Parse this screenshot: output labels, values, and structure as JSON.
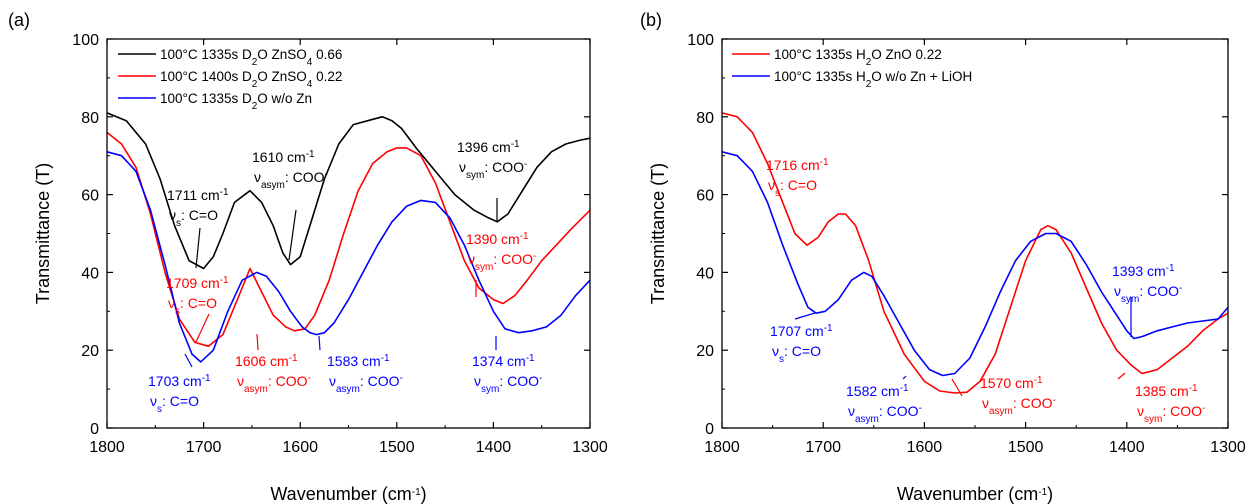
{
  "chart_data": [
    {
      "type": "line",
      "panel_label": "(a)",
      "xlabel": "Wavenumber (cm",
      "xlabel_sup": "-1",
      "xlabel_tail": ")",
      "ylabel": "Transmittance (T)",
      "xlim": [
        1800,
        1300
      ],
      "ylim": [
        0,
        100
      ],
      "x_reversed": true,
      "xticks": [
        1800,
        1700,
        1600,
        1500,
        1400,
        1300
      ],
      "yticks": [
        0,
        20,
        40,
        60,
        80,
        100
      ],
      "grid": false,
      "legend_position": "top-left",
      "series": [
        {
          "name": "100°C 1335s D2O ZnSO4 0.66",
          "legend_parts": [
            [
              "100°C 1335s D",
              ""
            ],
            [
              "2",
              "sub"
            ],
            [
              "O ZnSO",
              ""
            ],
            [
              "4",
              "sub"
            ],
            [
              " 0.66",
              ""
            ]
          ],
          "color": "#000000",
          "x": [
            1800,
            1780,
            1760,
            1745,
            1730,
            1715,
            1700,
            1690,
            1680,
            1668,
            1652,
            1640,
            1628,
            1618,
            1610,
            1600,
            1590,
            1575,
            1560,
            1545,
            1530,
            1515,
            1505,
            1495,
            1480,
            1460,
            1440,
            1420,
            1405,
            1396,
            1385,
            1370,
            1355,
            1340,
            1325,
            1310,
            1300
          ],
          "y": [
            81,
            79,
            73,
            64,
            52,
            43,
            41,
            44,
            50,
            58,
            61,
            58,
            52,
            45,
            42,
            44,
            52,
            64,
            73,
            78,
            79,
            80,
            79,
            77,
            72,
            66,
            60,
            56,
            54,
            53,
            55,
            61,
            67,
            71,
            73,
            74,
            74.5
          ]
        },
        {
          "name": "100°C 1400s D2O ZnSO4 0.22",
          "legend_parts": [
            [
              "100°C 1400s D",
              ""
            ],
            [
              "2",
              "sub"
            ],
            [
              "O ZnSO",
              ""
            ],
            [
              "4",
              "sub"
            ],
            [
              " 0.22",
              ""
            ]
          ],
          "color": "#ff0000",
          "x": [
            1800,
            1785,
            1770,
            1755,
            1740,
            1725,
            1709,
            1695,
            1680,
            1665,
            1652,
            1640,
            1628,
            1615,
            1606,
            1595,
            1585,
            1570,
            1555,
            1540,
            1525,
            1510,
            1500,
            1490,
            1475,
            1460,
            1445,
            1430,
            1415,
            1400,
            1390,
            1378,
            1365,
            1350,
            1335,
            1320,
            1300
          ],
          "y": [
            76,
            73,
            67,
            55,
            40,
            28,
            22,
            21,
            24,
            33,
            41,
            35,
            29,
            26,
            25,
            25.5,
            29,
            38,
            50,
            61,
            68,
            71,
            72,
            72,
            70,
            63,
            53,
            43,
            36,
            33,
            32,
            34,
            38,
            43,
            47,
            51,
            56
          ]
        },
        {
          "name": "100°C 1335s D2O w/o Zn",
          "legend_parts": [
            [
              "100°C 1335s D",
              ""
            ],
            [
              "2",
              "sub"
            ],
            [
              "O w/o Zn",
              ""
            ]
          ],
          "color": "#0000ff",
          "x": [
            1800,
            1785,
            1770,
            1755,
            1740,
            1725,
            1712,
            1703,
            1690,
            1675,
            1660,
            1645,
            1635,
            1622,
            1610,
            1598,
            1590,
            1583,
            1575,
            1565,
            1550,
            1535,
            1520,
            1505,
            1490,
            1475,
            1460,
            1445,
            1430,
            1415,
            1400,
            1388,
            1374,
            1360,
            1345,
            1330,
            1315,
            1300
          ],
          "y": [
            71,
            70,
            66,
            56,
            42,
            27,
            19,
            17,
            20,
            30,
            38,
            40,
            39,
            35,
            30,
            26,
            24.5,
            24,
            24.5,
            27,
            33,
            40,
            47,
            53,
            57,
            58.5,
            58,
            54,
            47,
            38,
            30,
            25.5,
            24.5,
            25,
            26,
            29,
            34,
            38
          ]
        }
      ],
      "annotations": [
        {
          "color": "#000000",
          "line1": "1711 cm",
          "line1_sup": "-1",
          "sym": "ν",
          "sym_sub": "s",
          "rest": ": C=O"
        },
        {
          "color": "#000000",
          "line1": "1610 cm",
          "line1_sup": "-1",
          "sym": "ν",
          "sym_sub": "asym",
          "rest": ": COO",
          "rest_sup": "-"
        },
        {
          "color": "#000000",
          "line1": "1396 cm",
          "line1_sup": "-1",
          "sym": "ν",
          "sym_sub": "sym",
          "rest": ": COO",
          "rest_sup": "-"
        },
        {
          "color": "#ff0000",
          "line1": "1709 cm",
          "line1_sup": "-1",
          "sym": "ν",
          "sym_sub": "s",
          "rest": ": C=O"
        },
        {
          "color": "#ff0000",
          "line1": "1606 cm",
          "line1_sup": "-1",
          "sym": "ν",
          "sym_sub": "asym",
          "rest": ": COO",
          "rest_sup": "-"
        },
        {
          "color": "#ff0000",
          "line1": "1390 cm",
          "line1_sup": "-1",
          "sym": "ν",
          "sym_sub": "sym",
          "rest": ": COO",
          "rest_sup": "-"
        },
        {
          "color": "#0000ff",
          "line1": "1703 cm",
          "line1_sup": "-1",
          "sym": "ν",
          "sym_sub": "s",
          "rest": ": C=O"
        },
        {
          "color": "#0000ff",
          "line1": "1583 cm",
          "line1_sup": "-1",
          "sym": "ν",
          "sym_sub": "asym",
          "rest": ": COO",
          "rest_sup": "-"
        },
        {
          "color": "#0000ff",
          "line1": "1374 cm",
          "line1_sup": "-1",
          "sym": "ν",
          "sym_sub": "sym",
          "rest": ": COO",
          "rest_sup": "-"
        }
      ]
    },
    {
      "type": "line",
      "panel_label": "(b)",
      "xlabel": "Wavenumber (cm",
      "xlabel_sup": "-1",
      "xlabel_tail": ")",
      "ylabel": "Transmittance (T)",
      "xlim": [
        1800,
        1300
      ],
      "ylim": [
        0,
        100
      ],
      "x_reversed": true,
      "xticks": [
        1800,
        1700,
        1600,
        1500,
        1400,
        1300
      ],
      "yticks": [
        0,
        20,
        40,
        60,
        80,
        100
      ],
      "grid": false,
      "legend_position": "top-left",
      "series": [
        {
          "name": "100°C 1335s H2O ZnO 0.22",
          "legend_parts": [
            [
              "100°C 1335s H",
              ""
            ],
            [
              "2",
              "sub"
            ],
            [
              "O ZnO 0.22",
              ""
            ]
          ],
          "color": "#ff0000",
          "x": [
            1800,
            1785,
            1770,
            1755,
            1740,
            1728,
            1716,
            1705,
            1695,
            1685,
            1678,
            1668,
            1655,
            1640,
            1620,
            1600,
            1585,
            1570,
            1558,
            1545,
            1530,
            1515,
            1500,
            1485,
            1478,
            1470,
            1455,
            1440,
            1425,
            1410,
            1395,
            1385,
            1370,
            1355,
            1340,
            1325,
            1310,
            1300
          ],
          "y": [
            81,
            80,
            76,
            68,
            58,
            50,
            47,
            49,
            53,
            55,
            55,
            52,
            43,
            30,
            19,
            12,
            9.5,
            9,
            9.2,
            12,
            19,
            31,
            43,
            51,
            52,
            51,
            45,
            36,
            27,
            20,
            16,
            14,
            15,
            18,
            21,
            25,
            28,
            29.5
          ]
        },
        {
          "name": "100°C 1335s H2O w/o Zn + LiOH",
          "legend_parts": [
            [
              "100°C 1335s H",
              ""
            ],
            [
              "2",
              "sub"
            ],
            [
              "O w/o Zn + LiOH",
              ""
            ]
          ],
          "color": "#0000ff",
          "x": [
            1800,
            1785,
            1770,
            1755,
            1740,
            1725,
            1715,
            1707,
            1698,
            1685,
            1672,
            1660,
            1652,
            1640,
            1625,
            1610,
            1595,
            1582,
            1570,
            1555,
            1540,
            1525,
            1510,
            1495,
            1480,
            1470,
            1455,
            1440,
            1425,
            1410,
            1400,
            1393,
            1385,
            1370,
            1355,
            1340,
            1325,
            1310,
            1300
          ],
          "y": [
            71,
            70,
            66,
            58,
            47,
            37,
            31,
            29.5,
            30,
            33,
            38,
            40,
            39,
            34,
            27,
            20,
            15,
            13.5,
            14,
            18,
            26,
            35,
            43,
            48,
            50,
            50,
            48,
            42,
            35,
            29,
            25,
            23,
            23.5,
            25,
            26,
            27,
            27.5,
            28,
            31
          ]
        }
      ],
      "annotations": [
        {
          "color": "#ff0000",
          "line1": "1716 cm",
          "line1_sup": "-1",
          "sym": "ν",
          "sym_sub": "s",
          "rest": ": C=O"
        },
        {
          "color": "#ff0000",
          "line1": "1570 cm",
          "line1_sup": "-1",
          "sym": "ν",
          "sym_sub": "asym",
          "rest": ": COO",
          "rest_sup": "-"
        },
        {
          "color": "#ff0000",
          "line1": "1385 cm",
          "line1_sup": "-1",
          "sym": "ν",
          "sym_sub": "sym",
          "rest": ": COO",
          "rest_sup": "-"
        },
        {
          "color": "#0000ff",
          "line1": "1707 cm",
          "line1_sup": "-1",
          "sym": "ν",
          "sym_sub": "s",
          "rest": ": C=O"
        },
        {
          "color": "#0000ff",
          "line1": "1582 cm",
          "line1_sup": "-1",
          "sym": "ν",
          "sym_sub": "asym",
          "rest": ": COO",
          "rest_sup": "-"
        },
        {
          "color": "#0000ff",
          "line1": "1393 cm",
          "line1_sup": "-1",
          "sym": "ν",
          "sym_sub": "sym",
          "rest": ": COO",
          "rest_sup": "-"
        }
      ]
    }
  ]
}
